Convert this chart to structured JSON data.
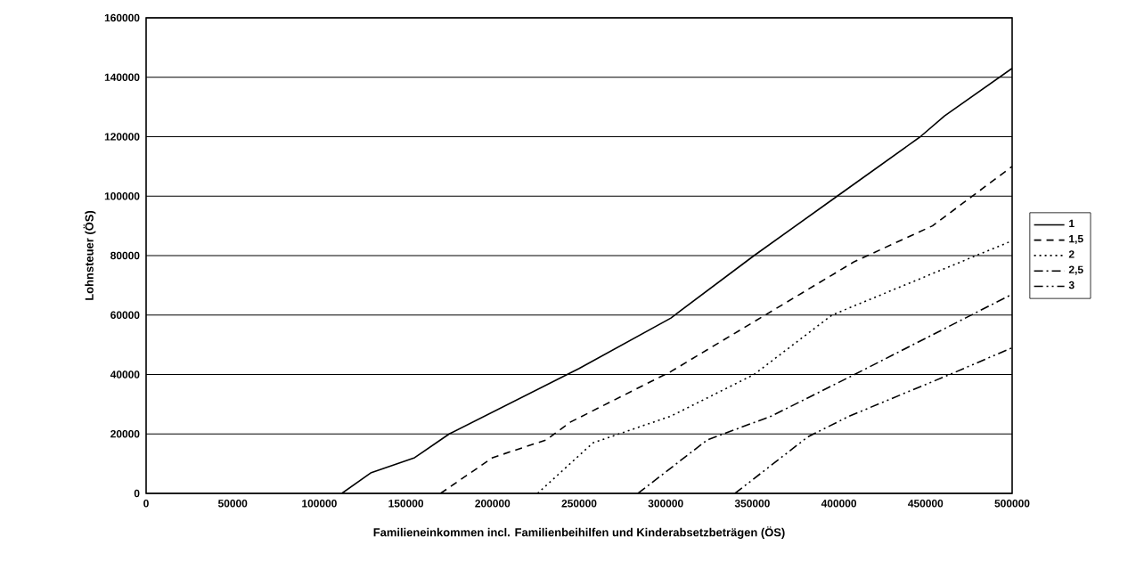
{
  "chart_data": {
    "type": "line",
    "xlabel": "Familieneinkommen incl. Familienbeihilfen und Kinderabsetzbeträgen (ÖS)",
    "ylabel": "Lohnsteuer (ÖS)",
    "xlim": [
      0,
      500000
    ],
    "ylim": [
      0,
      160000
    ],
    "xticks": [
      0,
      50000,
      100000,
      150000,
      200000,
      250000,
      300000,
      350000,
      400000,
      450000,
      500000
    ],
    "yticks": [
      0,
      20000,
      40000,
      60000,
      80000,
      100000,
      120000,
      140000,
      160000
    ],
    "grid": "y",
    "legend": "right",
    "marker": "none",
    "series": [
      {
        "name": "1",
        "color": "#000000",
        "line_style": "solid",
        "x": [
          113000,
          130000,
          155000,
          175000,
          250000,
          303000,
          351000,
          399000,
          447000,
          461000,
          500000
        ],
        "values": [
          0,
          7000,
          12000,
          20000,
          42000,
          59000,
          80000,
          100000,
          120000,
          127000,
          143000
        ]
      },
      {
        "name": "1,5",
        "color": "#000000",
        "line_style": "dashed",
        "x": [
          170000,
          200000,
          231000,
          245000,
          303000,
          409000,
          454000,
          500000
        ],
        "values": [
          0,
          12000,
          18000,
          24000,
          41000,
          78000,
          90000,
          110000
        ]
      },
      {
        "name": "2",
        "color": "#000000",
        "line_style": "dotted",
        "x": [
          226000,
          258000,
          303000,
          351000,
          396000,
          500000
        ],
        "values": [
          0,
          17000,
          26000,
          40000,
          60000,
          85000
        ]
      },
      {
        "name": "2,5",
        "color": "#000000",
        "line_style": "dashdot",
        "x": [
          284000,
          324000,
          361000,
          409000,
          500000
        ],
        "values": [
          0,
          18000,
          26000,
          40000,
          67000
        ]
      },
      {
        "name": "3",
        "color": "#000000",
        "line_style": "dashdotdot",
        "x": [
          340000,
          382000,
          406000,
          464000,
          500000
        ],
        "values": [
          0,
          19000,
          26000,
          40000,
          49000
        ]
      }
    ]
  }
}
